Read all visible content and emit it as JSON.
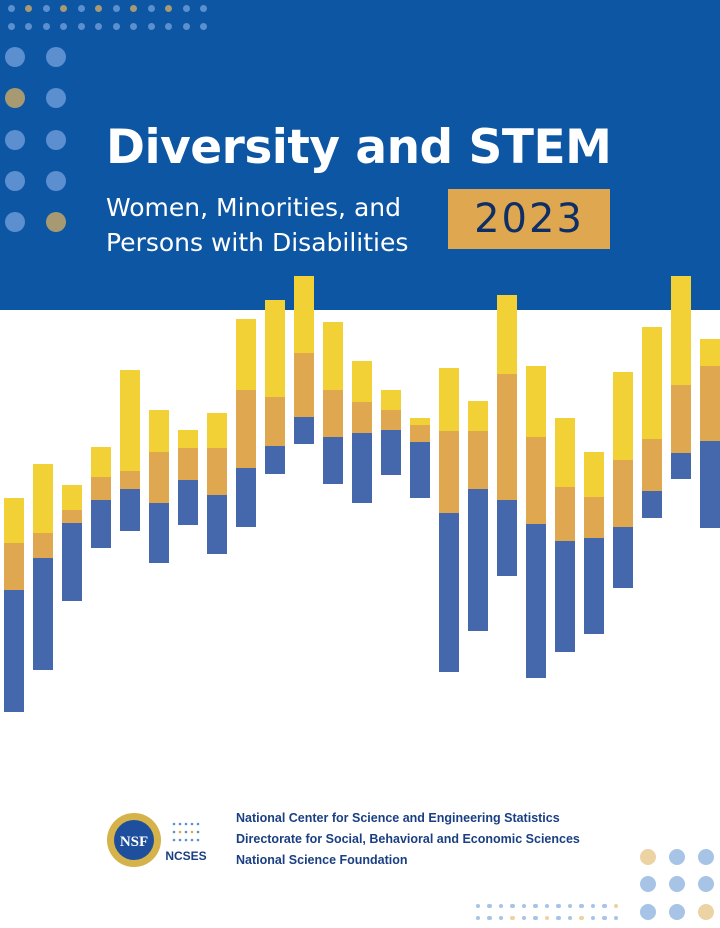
{
  "cover": {
    "title": "Diversity and STEM",
    "subtitle_line1": "Women, Minorities, and",
    "subtitle_line2": "Persons with Disabilities",
    "year": "2023"
  },
  "logos": {
    "nsf": "NSF",
    "ncses": "NCSES"
  },
  "footer": {
    "lines": [
      "National Center for Science and Engineering Statistics",
      "Directorate for Social, Behavioral and Economic Sciences",
      "National Science Foundation"
    ]
  },
  "colors": {
    "band": "#0d56a3",
    "yellow": "#f2d136",
    "orange": "#e0a751",
    "blue": "#4568ad",
    "dot_light": "#5b8fcf",
    "dot_gold": "#a79a73"
  }
}
